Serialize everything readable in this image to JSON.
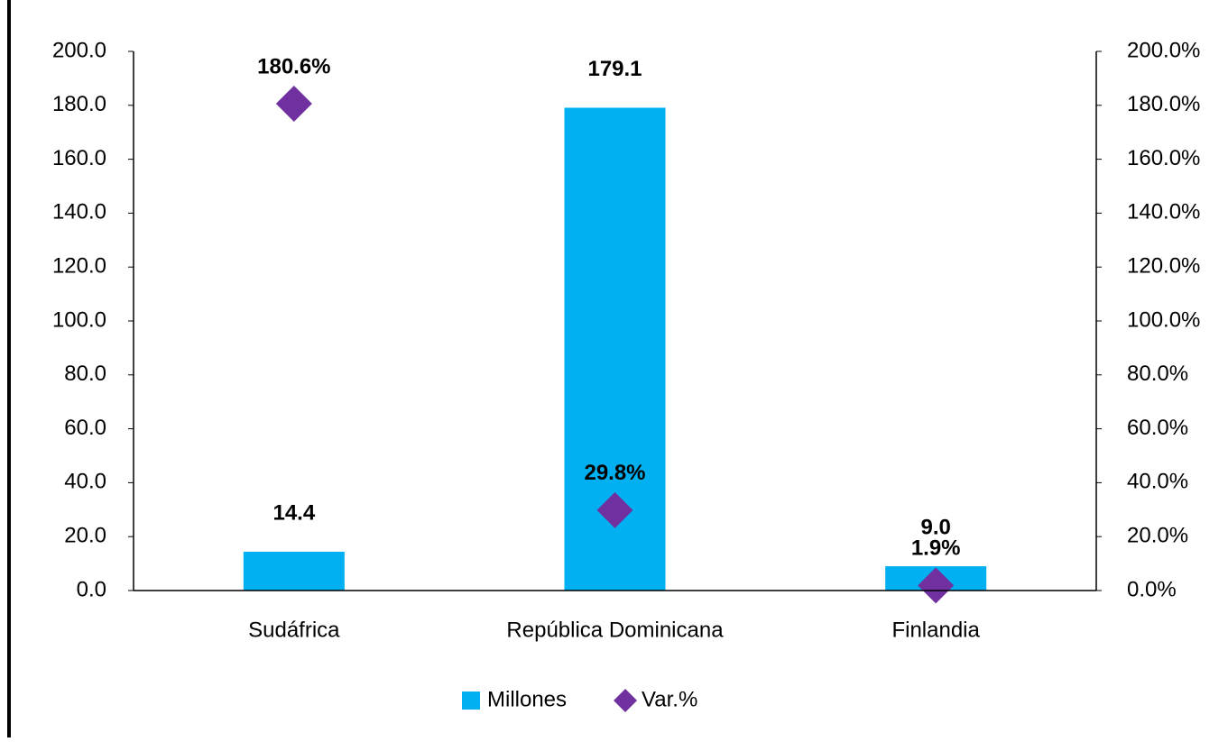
{
  "chart_data": {
    "type": "bar_scatter",
    "categories": [
      "Sudáfrica",
      "República Dominicana",
      "Finlandia"
    ],
    "series": [
      {
        "name": "Millones",
        "color": "#00b0f0",
        "type": "bar",
        "values": [
          14.4,
          179.1,
          9.0
        ],
        "value_labels": [
          "14.4",
          "179.1",
          "9.0"
        ]
      },
      {
        "name": "Var.%",
        "color": "#7030a0",
        "type": "scatter",
        "axis": "y2",
        "values": [
          180.6,
          29.8,
          1.9
        ],
        "value_labels": [
          "180.6%",
          "29.8%",
          "1.9%"
        ]
      }
    ],
    "ylim": [
      0,
      200
    ],
    "yticks": [
      {
        "value": 0,
        "label": "0.0"
      },
      {
        "value": 20,
        "label": "20.0"
      },
      {
        "value": 40,
        "label": "40.0"
      },
      {
        "value": 60,
        "label": "60.0"
      },
      {
        "value": 80,
        "label": "80.0"
      },
      {
        "value": 100,
        "label": "100.0"
      },
      {
        "value": 120,
        "label": "120.0"
      },
      {
        "value": 140,
        "label": "140.0"
      },
      {
        "value": 160,
        "label": "160.0"
      },
      {
        "value": 180,
        "label": "180.0"
      },
      {
        "value": 200,
        "label": "200.0"
      }
    ],
    "y2lim": [
      0,
      200
    ],
    "y2ticks": [
      {
        "value": 0,
        "label": "0.0%"
      },
      {
        "value": 20,
        "label": "20.0%"
      },
      {
        "value": 40,
        "label": "40.0%"
      },
      {
        "value": 60,
        "label": "60.0%"
      },
      {
        "value": 80,
        "label": "80.0%"
      },
      {
        "value": 100,
        "label": "100.0%"
      },
      {
        "value": 120,
        "label": "120.0%"
      },
      {
        "value": 140,
        "label": "140.0%"
      },
      {
        "value": 160,
        "label": "160.0%"
      },
      {
        "value": 180,
        "label": "180.0%"
      },
      {
        "value": 200,
        "label": "200.0%"
      }
    ],
    "legend": "bottom"
  }
}
